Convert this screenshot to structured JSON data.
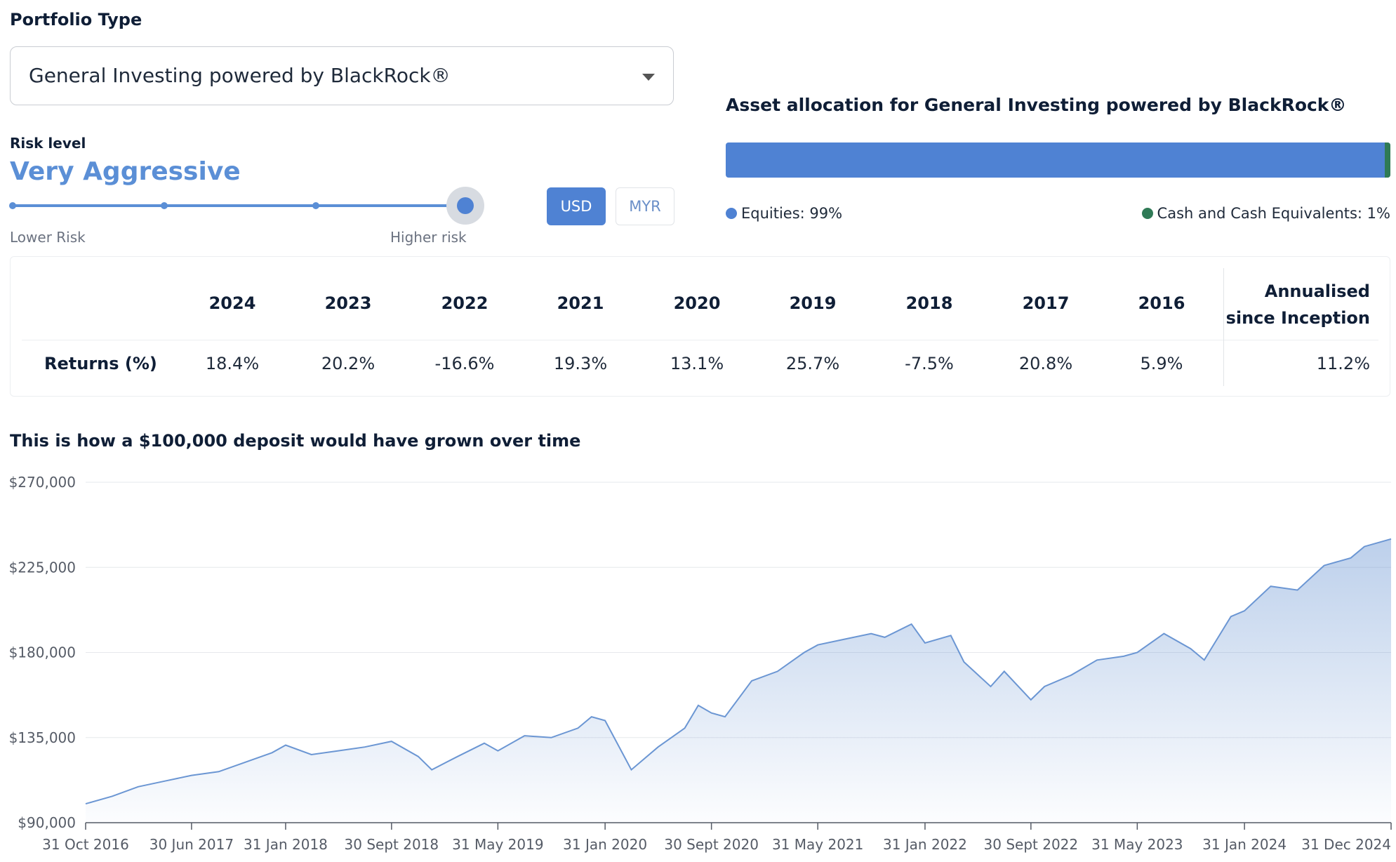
{
  "portfolio": {
    "label": "Portfolio Type",
    "selected": "General Investing powered by BlackRock®"
  },
  "risk": {
    "label": "Risk level",
    "value": "Very Aggressive",
    "lower_label": "Lower Risk",
    "higher_label": "Higher risk",
    "steps": 4,
    "selected_step": 4
  },
  "currency": {
    "options": [
      "USD",
      "MYR"
    ],
    "selected": "USD"
  },
  "allocation": {
    "title": "Asset allocation for General Investing powered by BlackRock®",
    "items": [
      {
        "label": "Equities: 99%",
        "percent": 99,
        "color": "#4f82d3"
      },
      {
        "label": "Cash and Cash Equivalents: 1%",
        "percent": 1,
        "color": "#2f7a56"
      }
    ]
  },
  "returns": {
    "row_label": "Returns (%)",
    "years": [
      "2024",
      "2023",
      "2022",
      "2021",
      "2020",
      "2019",
      "2018",
      "2017",
      "2016"
    ],
    "values": [
      "18.4%",
      "20.2%",
      "-16.6%",
      "19.3%",
      "13.1%",
      "25.7%",
      "-7.5%",
      "20.8%",
      "5.9%"
    ],
    "annualised_label_1": "Annualised",
    "annualised_label_2": "since Inception",
    "annualised_value": "11.2%"
  },
  "chart_title": "This is how a $100,000 deposit would have grown over time",
  "chart_data": {
    "type": "area",
    "title": "This is how a $100,000 deposit would have grown over time",
    "xlabel": "",
    "ylabel": "",
    "ylim": [
      90000,
      270000
    ],
    "y_ticks": [
      "$90,000",
      "$135,000",
      "$180,000",
      "$225,000",
      "$270,000"
    ],
    "y_tick_values": [
      90000,
      135000,
      180000,
      225000,
      270000
    ],
    "x_ticks": [
      "31 Oct 2016",
      "30 Jun 2017",
      "31 Jan 2018",
      "30 Sept 2018",
      "31 May 2019",
      "31 Jan 2020",
      "30 Sept 2020",
      "31 May 2021",
      "31 Jan 2022",
      "30 Sept 2022",
      "31 May 2023",
      "31 Jan 2024",
      "31 Dec 2024"
    ],
    "x_tick_dates": [
      "2016-10-31",
      "2017-06-30",
      "2018-01-31",
      "2018-09-30",
      "2019-05-31",
      "2020-01-31",
      "2020-09-30",
      "2021-05-31",
      "2022-01-31",
      "2022-09-30",
      "2023-05-31",
      "2024-01-31",
      "2024-12-31"
    ],
    "color": "#6b96d3",
    "grid": true,
    "points": [
      [
        "2016-10-31",
        100000
      ],
      [
        "2016-12-31",
        104000
      ],
      [
        "2017-02-28",
        109000
      ],
      [
        "2017-04-30",
        112000
      ],
      [
        "2017-06-30",
        115000
      ],
      [
        "2017-08-31",
        117000
      ],
      [
        "2017-10-31",
        122000
      ],
      [
        "2017-12-31",
        127000
      ],
      [
        "2018-01-31",
        131000
      ],
      [
        "2018-03-31",
        126000
      ],
      [
        "2018-05-31",
        128000
      ],
      [
        "2018-07-31",
        130000
      ],
      [
        "2018-09-30",
        133000
      ],
      [
        "2018-11-30",
        125000
      ],
      [
        "2018-12-31",
        118000
      ],
      [
        "2019-02-28",
        125000
      ],
      [
        "2019-04-30",
        132000
      ],
      [
        "2019-05-31",
        128000
      ],
      [
        "2019-07-31",
        136000
      ],
      [
        "2019-09-30",
        135000
      ],
      [
        "2019-11-30",
        140000
      ],
      [
        "2019-12-31",
        146000
      ],
      [
        "2020-01-31",
        144000
      ],
      [
        "2020-03-31",
        118000
      ],
      [
        "2020-05-31",
        130000
      ],
      [
        "2020-07-31",
        140000
      ],
      [
        "2020-08-31",
        152000
      ],
      [
        "2020-09-30",
        148000
      ],
      [
        "2020-10-31",
        146000
      ],
      [
        "2020-12-31",
        165000
      ],
      [
        "2021-02-28",
        170000
      ],
      [
        "2021-04-30",
        180000
      ],
      [
        "2021-05-31",
        184000
      ],
      [
        "2021-07-31",
        187000
      ],
      [
        "2021-09-30",
        190000
      ],
      [
        "2021-10-31",
        188000
      ],
      [
        "2021-12-31",
        195000
      ],
      [
        "2022-01-31",
        185000
      ],
      [
        "2022-03-31",
        189000
      ],
      [
        "2022-04-30",
        175000
      ],
      [
        "2022-06-30",
        162000
      ],
      [
        "2022-07-31",
        170000
      ],
      [
        "2022-09-30",
        155000
      ],
      [
        "2022-10-31",
        162000
      ],
      [
        "2022-12-31",
        168000
      ],
      [
        "2023-02-28",
        176000
      ],
      [
        "2023-04-30",
        178000
      ],
      [
        "2023-05-31",
        180000
      ],
      [
        "2023-07-31",
        190000
      ],
      [
        "2023-09-30",
        182000
      ],
      [
        "2023-10-31",
        176000
      ],
      [
        "2023-12-31",
        199000
      ],
      [
        "2024-01-31",
        202000
      ],
      [
        "2024-03-31",
        215000
      ],
      [
        "2024-05-31",
        213000
      ],
      [
        "2024-07-31",
        226000
      ],
      [
        "2024-09-30",
        230000
      ],
      [
        "2024-10-31",
        236000
      ],
      [
        "2024-12-31",
        240000
      ]
    ]
  }
}
